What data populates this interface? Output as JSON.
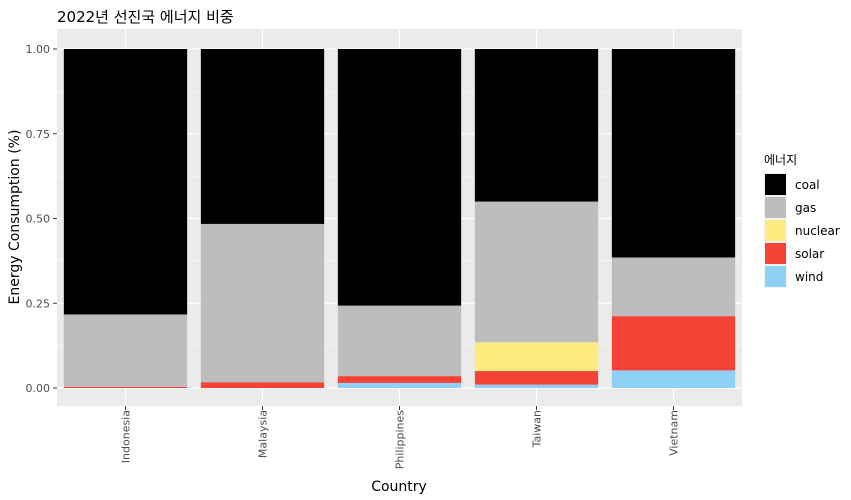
{
  "chart_data": {
    "type": "bar",
    "stacked": true,
    "title": "2022년 선진국 에너지 비중",
    "xlabel": "Country",
    "ylabel": "Energy Consumption (%)",
    "ylim": [
      0,
      1
    ],
    "yticks": [
      "0.00",
      "0.25",
      "0.50",
      "0.75",
      "1.00"
    ],
    "grid": true,
    "categories": [
      "Indonesia",
      "Malaysia",
      "Philippines",
      "Taiwan",
      "Vietnam"
    ],
    "series": [
      {
        "name": "wind",
        "color": "#8fd1f5",
        "values": [
          0.0,
          0.0,
          0.015,
          0.01,
          0.052
        ]
      },
      {
        "name": "solar",
        "color": "#f44336",
        "values": [
          0.003,
          0.017,
          0.02,
          0.04,
          0.16
        ]
      },
      {
        "name": "nuclear",
        "color": "#ffeb80",
        "values": [
          0.0,
          0.0,
          0.0,
          0.085,
          0.0
        ]
      },
      {
        "name": "gas",
        "color": "#bdbdbd",
        "values": [
          0.214,
          0.467,
          0.208,
          0.415,
          0.173
        ]
      },
      {
        "name": "coal",
        "color": "#000000",
        "values": [
          0.783,
          0.516,
          0.757,
          0.45,
          0.615
        ]
      }
    ],
    "legend": {
      "title": "에너지",
      "position": "right",
      "order": [
        "coal",
        "gas",
        "nuclear",
        "solar",
        "wind"
      ]
    }
  }
}
